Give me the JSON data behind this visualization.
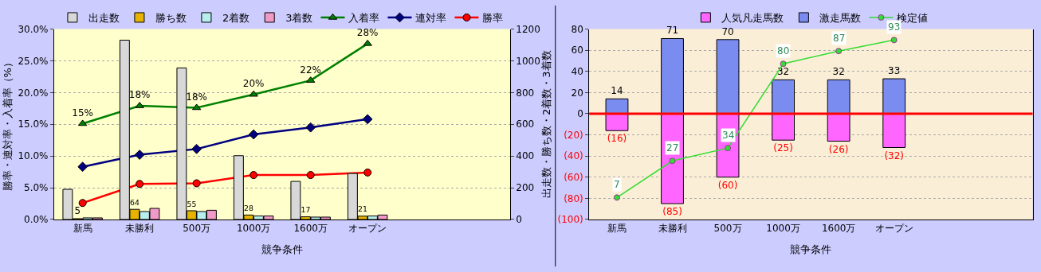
{
  "chart_data": [
    {
      "type": "bar",
      "categories": [
        "新馬",
        "未勝利",
        "500万",
        "1000万",
        "1600万",
        "オープン",
        null,
        null
      ],
      "xlabel": "競争条件",
      "ylabel": "勝率・連対率・入着率（%）",
      "y2label": "出走数・勝ち数・2着数・3着数",
      "ylim": [
        0,
        30
      ],
      "yticks": [
        {
          "value": 0,
          "label": "0.0%"
        },
        {
          "value": 5,
          "label": "5.0%"
        },
        {
          "value": 10,
          "label": "10.0%"
        },
        {
          "value": 15,
          "label": "15.0%"
        },
        {
          "value": 20,
          "label": "20.0%"
        },
        {
          "value": 25,
          "label": "25.0%"
        },
        {
          "value": 30,
          "label": "30.0%"
        }
      ],
      "y2lim": [
        0,
        1200
      ],
      "y2ticks": [
        0,
        200,
        400,
        600,
        800,
        1000,
        1200
      ],
      "grid": true,
      "legend": "top",
      "series": [
        {
          "name": "出走数",
          "axis": "y2",
          "color": "#d8d8d8",
          "values": [
            190,
            1130,
            955,
            402,
            240,
            290,
            null,
            null
          ]
        },
        {
          "name": "勝ち数",
          "axis": "y2",
          "color": "#e6b400",
          "values": [
            5,
            64,
            55,
            28,
            17,
            21,
            null,
            null
          ],
          "value_labels": [
            "5",
            "64",
            "55",
            "28",
            "17",
            "21",
            null,
            null
          ]
        },
        {
          "name": "2着数",
          "axis": "y2",
          "color": "#b8eeee",
          "values": [
            10,
            50,
            50,
            22,
            15,
            22,
            null,
            null
          ]
        },
        {
          "name": "3着数",
          "axis": "y2",
          "color": "#f09ac8",
          "values": [
            10,
            70,
            58,
            22,
            15,
            28,
            null,
            null
          ]
        },
        {
          "name": "入着率",
          "type": "line",
          "color": "#008000",
          "marker": "triangle",
          "values": [
            15.1,
            17.9,
            17.6,
            19.7,
            21.9,
            27.7,
            null,
            null
          ],
          "value_labels": [
            "15%",
            "18%",
            "18%",
            "20%",
            "22%",
            "28%",
            null,
            null
          ]
        },
        {
          "name": "連対率",
          "type": "line",
          "color": "#000080",
          "marker": "diamond",
          "values": [
            8.3,
            10.2,
            11.1,
            13.4,
            14.5,
            15.8,
            null,
            null
          ]
        },
        {
          "name": "勝率",
          "type": "line",
          "color": "#ff0000",
          "marker": "circle",
          "values": [
            2.6,
            5.6,
            5.7,
            7.0,
            7.0,
            7.4,
            null,
            null
          ]
        }
      ]
    },
    {
      "type": "bar",
      "stacked": true,
      "categories": [
        "新馬",
        "未勝利",
        "500万",
        "1000万",
        "1600万",
        "オープン",
        null,
        null
      ],
      "xlabel": "競争条件",
      "ylim": [
        -100,
        80
      ],
      "yticks": [
        80,
        60,
        40,
        20,
        0,
        {
          "value": -20,
          "label": "(20)"
        },
        {
          "value": -40,
          "label": "(40)"
        },
        {
          "value": -60,
          "label": "(60)"
        },
        {
          "value": -80,
          "label": "(80)"
        },
        {
          "value": -100,
          "label": "(100)"
        }
      ],
      "y2lim": [
        -5,
        99
      ],
      "grid": true,
      "legend": "top",
      "ref_lines": [
        {
          "axis": "y",
          "value": 0,
          "color": "#ff0000"
        }
      ],
      "series": [
        {
          "name": "人気凡走馬数",
          "color": "#ff66ff",
          "values": [
            -16,
            -85,
            -60,
            -25,
            -26,
            -32,
            null,
            null
          ],
          "value_labels": [
            "(16)",
            "(85)",
            "(60)",
            "(25)",
            "(26)",
            "(32)",
            null,
            null
          ]
        },
        {
          "name": "激走馬数",
          "color": "#7b8cf0",
          "values": [
            14,
            71,
            70,
            32,
            32,
            33,
            null,
            null
          ],
          "value_labels": [
            "14",
            "71",
            "70",
            "32",
            "32",
            "33",
            null,
            null
          ]
        },
        {
          "name": "検定値",
          "type": "line",
          "axis": "y2",
          "color": "#33dd33",
          "marker": "circle",
          "values": [
            7,
            27,
            34,
            80,
            87,
            93,
            null,
            null
          ],
          "value_labels": [
            "7",
            "27",
            "34",
            "80",
            "87",
            "93",
            null,
            null
          ]
        }
      ]
    }
  ]
}
